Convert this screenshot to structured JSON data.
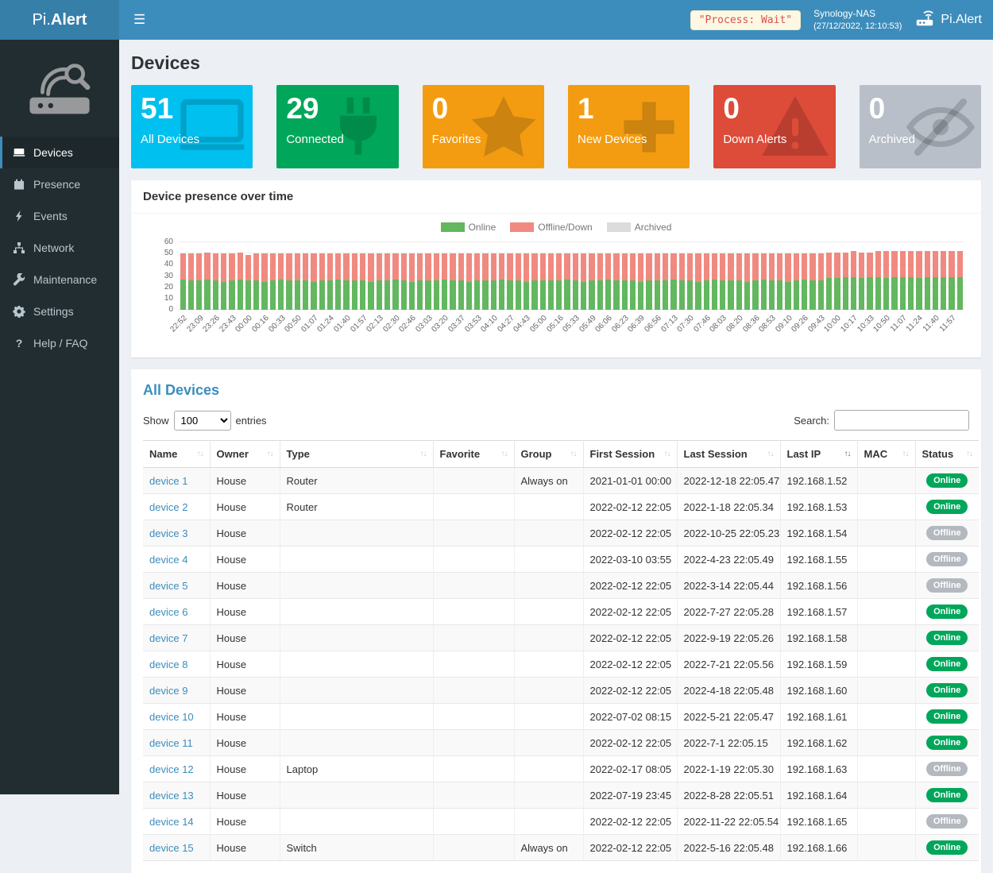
{
  "theme": {
    "accent": "#3c8dbc",
    "brand_bg": "#367fa9",
    "sidebar_bg": "#222d32",
    "body_bg": "#ecf0f5"
  },
  "header": {
    "brand_pi": "Pi.",
    "brand_alert": "Alert",
    "process_badge": "\"Process: Wait\"",
    "host_name": "Synology-NAS",
    "host_time": "(27/12/2022, 12:10:53)",
    "app_name": "Pi.Alert"
  },
  "sidebar": {
    "items": [
      {
        "label": "Devices",
        "icon": "laptop-icon",
        "active": true
      },
      {
        "label": "Presence",
        "icon": "calendar-icon",
        "active": false
      },
      {
        "label": "Events",
        "icon": "bolt-icon",
        "active": false
      },
      {
        "label": "Network",
        "icon": "network-icon",
        "active": false
      },
      {
        "label": "Maintenance",
        "icon": "wrench-icon",
        "active": false
      },
      {
        "label": "Settings",
        "icon": "gear-icon",
        "active": false
      },
      {
        "label": "Help / FAQ",
        "icon": "question-icon",
        "active": false
      }
    ]
  },
  "page": {
    "title": "Devices"
  },
  "cards": [
    {
      "value": "51",
      "label": "All Devices",
      "color": "#00c0ef",
      "icon": "monitor"
    },
    {
      "value": "29",
      "label": "Connected",
      "color": "#00a65a",
      "icon": "plug"
    },
    {
      "value": "0",
      "label": "Favorites",
      "color": "#f39c12",
      "icon": "star"
    },
    {
      "value": "1",
      "label": "New Devices",
      "color": "#f39c12",
      "icon": "plus"
    },
    {
      "value": "0",
      "label": "Down Alerts",
      "color": "#dd4b39",
      "icon": "warning"
    },
    {
      "value": "0",
      "label": "Archived",
      "color": "#b8bfc8",
      "icon": "eye-slash"
    }
  ],
  "chart_data": {
    "type": "bar",
    "stacked": true,
    "title": "Device presence over time",
    "xlabel": "",
    "ylabel": "",
    "ylim": [
      0,
      60
    ],
    "yticks": [
      0,
      10,
      20,
      30,
      40,
      50,
      60
    ],
    "grid": true,
    "legend_position": "top",
    "bars_total": 96,
    "x_labels_every_n_bars": 2,
    "x_tick_labels": [
      "22:52",
      "23:09",
      "23:26",
      "23:43",
      "00:00",
      "00:16",
      "00:33",
      "00:50",
      "01:07",
      "01:24",
      "01:40",
      "01:57",
      "02:13",
      "02:30",
      "02:46",
      "03:03",
      "03:20",
      "03:37",
      "03:53",
      "04:10",
      "04:27",
      "04:43",
      "05:00",
      "05:16",
      "05:33",
      "05:49",
      "06:06",
      "06:23",
      "06:39",
      "06:56",
      "07:13",
      "07:30",
      "07:46",
      "08:03",
      "08:20",
      "08:36",
      "08:53",
      "09:10",
      "09:26",
      "09:43",
      "10:00",
      "10:17",
      "10:33",
      "10:50",
      "11:07",
      "11:24",
      "11:40",
      "11:57"
    ],
    "series": [
      {
        "name": "Online",
        "color": "#63b75f",
        "values": [
          27,
          26,
          26,
          27,
          26,
          25,
          26,
          27,
          26,
          26,
          25,
          26,
          27,
          26,
          26,
          26,
          25,
          26,
          26,
          27,
          26,
          26,
          26,
          25,
          26,
          26,
          27,
          26,
          25,
          26,
          26,
          26,
          27,
          26,
          26,
          25,
          26,
          26,
          26,
          27,
          26,
          26,
          25,
          26,
          26,
          26,
          26,
          27,
          26,
          25,
          26,
          26,
          27,
          26,
          26,
          26,
          25,
          26,
          26,
          26,
          27,
          26,
          26,
          25,
          26,
          27,
          26,
          26,
          26,
          25,
          26,
          27,
          26,
          26,
          25,
          26,
          27,
          26,
          26,
          28,
          28,
          29,
          29,
          28,
          29,
          29,
          28,
          29,
          29,
          29,
          28,
          29,
          29,
          29,
          29,
          29
        ]
      },
      {
        "name": "Offline/Down",
        "color": "#f08a80",
        "values": [
          23,
          24,
          24,
          24,
          24,
          25,
          24,
          24,
          23,
          24,
          25,
          24,
          23,
          24,
          24,
          24,
          25,
          24,
          24,
          23,
          24,
          24,
          24,
          25,
          24,
          24,
          23,
          24,
          25,
          24,
          24,
          24,
          23,
          24,
          24,
          25,
          24,
          24,
          24,
          23,
          24,
          24,
          25,
          24,
          24,
          24,
          24,
          23,
          24,
          25,
          24,
          24,
          23,
          24,
          24,
          24,
          25,
          24,
          24,
          24,
          23,
          24,
          24,
          25,
          24,
          23,
          24,
          24,
          24,
          25,
          24,
          23,
          24,
          24,
          25,
          24,
          23,
          24,
          24,
          23,
          23,
          22,
          23,
          23,
          22,
          23,
          24,
          23,
          23,
          23,
          24,
          23,
          23,
          23,
          23,
          23
        ]
      },
      {
        "name": "Archived",
        "color": "#dcdcdc",
        "values": [
          0,
          0,
          0,
          0,
          0,
          0,
          0,
          0,
          0,
          0,
          0,
          0,
          0,
          0,
          0,
          0,
          0,
          0,
          0,
          0,
          0,
          0,
          0,
          0,
          0,
          0,
          0,
          0,
          0,
          0,
          0,
          0,
          0,
          0,
          0,
          0,
          0,
          0,
          0,
          0,
          0,
          0,
          0,
          0,
          0,
          0,
          0,
          0,
          0,
          0,
          0,
          0,
          0,
          0,
          0,
          0,
          0,
          0,
          0,
          0,
          0,
          0,
          0,
          0,
          0,
          0,
          0,
          0,
          0,
          0,
          0,
          0,
          0,
          0,
          0,
          0,
          0,
          0,
          0,
          0,
          0,
          0,
          0,
          0,
          0,
          0,
          0,
          0,
          0,
          0,
          0,
          0,
          0,
          0,
          0,
          0
        ]
      }
    ]
  },
  "table": {
    "title": "All Devices",
    "show_label": "Show",
    "entries_label": "entries",
    "page_size": "100",
    "search_label": "Search:",
    "search_value": "",
    "sorted_column": "Last IP",
    "status_colors": {
      "online": "#00a65a",
      "offline": "#b3b9bf"
    },
    "columns": [
      "Name",
      "Owner",
      "Type",
      "Favorite",
      "Group",
      "First Session",
      "Last Session",
      "Last IP",
      "MAC",
      "Status"
    ],
    "rows": [
      {
        "name": "device 1",
        "owner": "House",
        "type": "Router",
        "favorite": "",
        "group": "Always on",
        "first_session": "2021-01-01  00:00",
        "last_session": "2022-12-18  22:05.47",
        "last_ip": "192.168.1.52",
        "mac": "",
        "status": "Online"
      },
      {
        "name": "device 2",
        "owner": "House",
        "type": "Router",
        "favorite": "",
        "group": "",
        "first_session": "2022-02-12  22:05",
        "last_session": "2022-1-18  22:05.34",
        "last_ip": "192.168.1.53",
        "mac": "",
        "status": "Online"
      },
      {
        "name": "device 3",
        "owner": "House",
        "type": "",
        "favorite": "",
        "group": "",
        "first_session": "2022-02-12  22:05",
        "last_session": "2022-10-25  22:05.23",
        "last_ip": "192.168.1.54",
        "mac": "",
        "status": "Offline"
      },
      {
        "name": "device 4",
        "owner": "House",
        "type": "",
        "favorite": "",
        "group": "",
        "first_session": "2022-03-10  03:55",
        "last_session": "2022-4-23  22:05.49",
        "last_ip": "192.168.1.55",
        "mac": "",
        "status": "Offline"
      },
      {
        "name": "device 5",
        "owner": "House",
        "type": "",
        "favorite": "",
        "group": "",
        "first_session": "2022-02-12  22:05",
        "last_session": "2022-3-14  22:05.44",
        "last_ip": "192.168.1.56",
        "mac": "",
        "status": "Offline"
      },
      {
        "name": "device 6",
        "owner": "House",
        "type": "",
        "favorite": "",
        "group": "",
        "first_session": "2022-02-12  22:05",
        "last_session": "2022-7-27  22:05.28",
        "last_ip": "192.168.1.57",
        "mac": "",
        "status": "Online"
      },
      {
        "name": "device 7",
        "owner": "House",
        "type": "",
        "favorite": "",
        "group": "",
        "first_session": "2022-02-12  22:05",
        "last_session": "2022-9-19  22:05.26",
        "last_ip": "192.168.1.58",
        "mac": "",
        "status": "Online"
      },
      {
        "name": "device 8",
        "owner": "House",
        "type": "",
        "favorite": "",
        "group": "",
        "first_session": "2022-02-12  22:05",
        "last_session": "2022-7-21  22:05.56",
        "last_ip": "192.168.1.59",
        "mac": "",
        "status": "Online"
      },
      {
        "name": "device 9",
        "owner": "House",
        "type": "",
        "favorite": "",
        "group": "",
        "first_session": "2022-02-12  22:05",
        "last_session": "2022-4-18  22:05.48",
        "last_ip": "192.168.1.60",
        "mac": "",
        "status": "Online"
      },
      {
        "name": "device 10",
        "owner": "House",
        "type": "",
        "favorite": "",
        "group": "",
        "first_session": "2022-07-02  08:15",
        "last_session": "2022-5-21  22:05.47",
        "last_ip": "192.168.1.61",
        "mac": "",
        "status": "Online"
      },
      {
        "name": "device 11",
        "owner": "House",
        "type": "",
        "favorite": "",
        "group": "",
        "first_session": "2022-02-12  22:05",
        "last_session": "2022-7-1  22:05.15",
        "last_ip": "192.168.1.62",
        "mac": "",
        "status": "Online"
      },
      {
        "name": "device 12",
        "owner": "House",
        "type": "Laptop",
        "favorite": "",
        "group": "",
        "first_session": "2022-02-17  08:05",
        "last_session": "2022-1-19  22:05.30",
        "last_ip": "192.168.1.63",
        "mac": "",
        "status": "Offline"
      },
      {
        "name": "device 13",
        "owner": "House",
        "type": "",
        "favorite": "",
        "group": "",
        "first_session": "2022-07-19  23:45",
        "last_session": "2022-8-28  22:05.51",
        "last_ip": "192.168.1.64",
        "mac": "",
        "status": "Online"
      },
      {
        "name": "device 14",
        "owner": "House",
        "type": "",
        "favorite": "",
        "group": "",
        "first_session": "2022-02-12  22:05",
        "last_session": "2022-11-22  22:05.54",
        "last_ip": "192.168.1.65",
        "mac": "",
        "status": "Offline"
      },
      {
        "name": "device 15",
        "owner": "House",
        "type": "Switch",
        "favorite": "",
        "group": "Always on",
        "first_session": "2022-02-12  22:05",
        "last_session": "2022-5-16  22:05.48",
        "last_ip": "192.168.1.66",
        "mac": "",
        "status": "Online"
      }
    ]
  }
}
